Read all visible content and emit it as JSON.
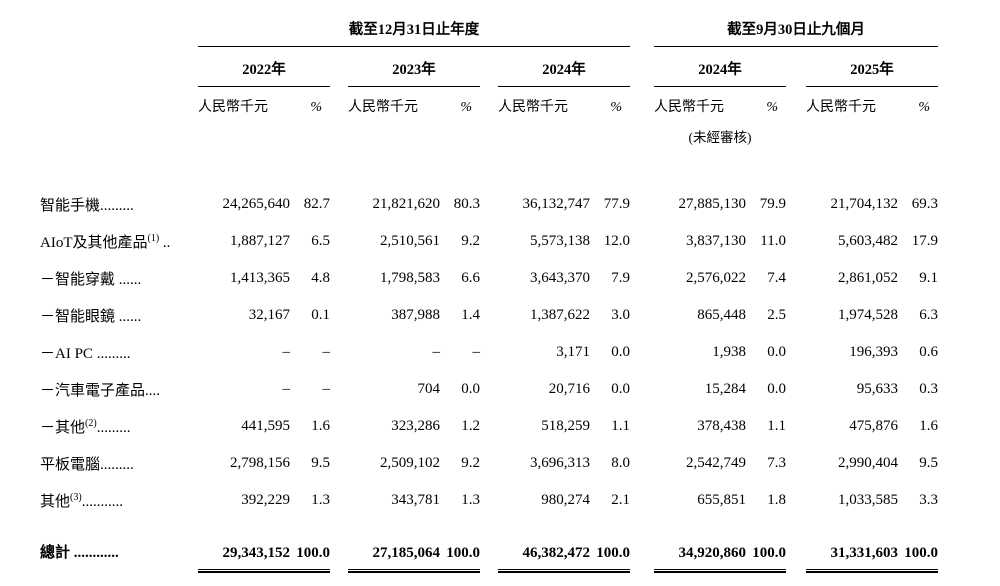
{
  "page": {
    "background": "#ffffff",
    "text_color": "#000000"
  },
  "table": {
    "group_headers": [
      {
        "label": "截至12月31日止年度"
      },
      {
        "label": "截至9月30日止九個月"
      }
    ],
    "year_headers": [
      "2022年",
      "2023年",
      "2024年",
      "2024年",
      "2025年"
    ],
    "unit_label": "人民幣千元",
    "percent_label": "%",
    "unaudited_note": "(未經審核)",
    "rows": [
      {
        "label": "智能手機",
        "sup": "",
        "dots": ".........",
        "values": [
          "24,265,640",
          "82.7",
          "21,821,620",
          "80.3",
          "36,132,747",
          "77.9",
          "27,885,130",
          "79.9",
          "21,704,132",
          "69.3"
        ]
      },
      {
        "label": "AIoT及其他產品",
        "sup": "(1)",
        "dots": " ..",
        "values": [
          "1,887,127",
          "6.5",
          "2,510,561",
          "9.2",
          "5,573,138",
          "12.0",
          "3,837,130",
          "11.0",
          "5,603,482",
          "17.9"
        ]
      },
      {
        "label": "－智能穿戴 ",
        "sup": "",
        "dots": "......",
        "values": [
          "1,413,365",
          "4.8",
          "1,798,583",
          "6.6",
          "3,643,370",
          "7.9",
          "2,576,022",
          "7.4",
          "2,861,052",
          "9.1"
        ]
      },
      {
        "label": "－智能眼鏡 ",
        "sup": "",
        "dots": "......",
        "values": [
          "32,167",
          "0.1",
          "387,988",
          "1.4",
          "1,387,622",
          "3.0",
          "865,448",
          "2.5",
          "1,974,528",
          "6.3"
        ]
      },
      {
        "label": "－AI PC ",
        "sup": "",
        "dots": ".........",
        "values": [
          "–",
          "–",
          "–",
          "–",
          "3,171",
          "0.0",
          "1,938",
          "0.0",
          "196,393",
          "0.6"
        ]
      },
      {
        "label": "－汽車電子產品",
        "sup": "",
        "dots": "....",
        "values": [
          "–",
          "–",
          "704",
          "0.0",
          "20,716",
          "0.0",
          "15,284",
          "0.0",
          "95,633",
          "0.3"
        ]
      },
      {
        "label": "－其他",
        "sup": "(2)",
        "dots": ".........",
        "values": [
          "441,595",
          "1.6",
          "323,286",
          "1.2",
          "518,259",
          "1.1",
          "378,438",
          "1.1",
          "475,876",
          "1.6"
        ]
      },
      {
        "label": "平板電腦",
        "sup": "",
        "dots": ".........",
        "values": [
          "2,798,156",
          "9.5",
          "2,509,102",
          "9.2",
          "3,696,313",
          "8.0",
          "2,542,749",
          "7.3",
          "2,990,404",
          "9.5"
        ]
      },
      {
        "label": "其他",
        "sup": "(3)",
        "dots": "...........",
        "values": [
          "392,229",
          "1.3",
          "343,781",
          "1.3",
          "980,274",
          "2.1",
          "655,851",
          "1.8",
          "1,033,585",
          "3.3"
        ]
      }
    ],
    "total": {
      "label": "總計 ",
      "sup": "",
      "dots": "............",
      "values": [
        "29,343,152",
        "100.0",
        "27,185,064",
        "100.0",
        "46,382,472",
        "100.0",
        "34,920,860",
        "100.0",
        "31,331,603",
        "100.0"
      ]
    }
  }
}
